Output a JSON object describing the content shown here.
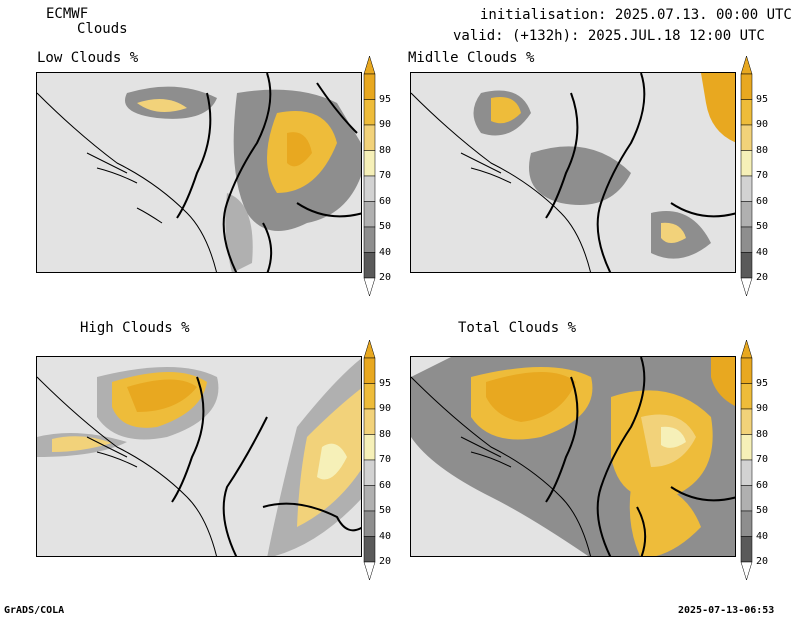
{
  "header": {
    "model": "ECMWF",
    "field": "Clouds",
    "init_line": "initialisation: 2025.07.13. 00:00 UTC",
    "valid_line": "valid: (+132h): 2025.JUL.18 12:00 UTC"
  },
  "panels": [
    {
      "title": "Low Clouds %"
    },
    {
      "title": "Midlle Clouds %"
    },
    {
      "title": "High Clouds %"
    },
    {
      "title": "Total Clouds %"
    }
  ],
  "colorbar": {
    "labels": [
      "95",
      "90",
      "80",
      "70",
      "60",
      "50",
      "40",
      "20"
    ],
    "colors": [
      "#e8a820",
      "#eebc3a",
      "#f2d27a",
      "#f6f0b8",
      "#d2d2d2",
      "#b0b0b0",
      "#8e8e8e",
      "#5a5a5a"
    ]
  },
  "footer": {
    "left": "GrADS/COLA",
    "right": "2025-07-13-06:53"
  }
}
